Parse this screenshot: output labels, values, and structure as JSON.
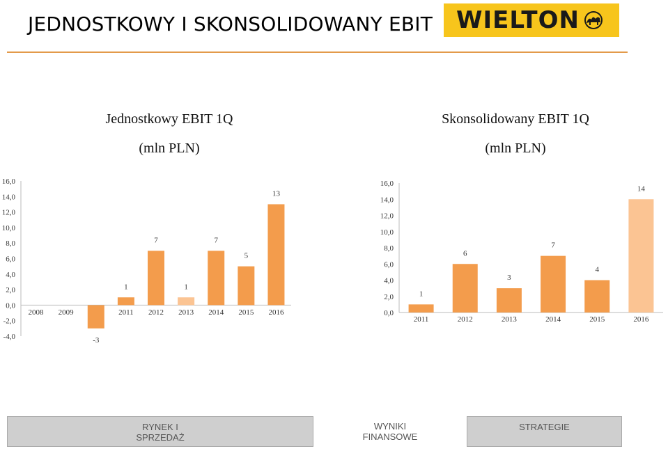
{
  "header": {
    "title": "JEDNOSTKOWY I SKONSOLIDOWANY EBIT",
    "logo_text": "WIELTON",
    "logo_color": "#f7c51c"
  },
  "colors": {
    "bar": "#f39c4c",
    "bar_light": "#fbc493",
    "rule": "#e39a4a"
  },
  "chart_data": [
    {
      "type": "bar",
      "title": "Jednostkowy EBIT 1Q",
      "subtitle": "(mln PLN)",
      "categories": [
        "2008",
        "2009",
        "2010",
        "2011",
        "2012",
        "2013",
        "2014",
        "2015",
        "2016"
      ],
      "values": [
        null,
        null,
        -3,
        1,
        7,
        1,
        7,
        5,
        13
      ],
      "data_labels": [
        "",
        "",
        "-3",
        "1",
        "7",
        "1",
        "7",
        "5",
        "13"
      ],
      "highlight_index": 5,
      "yticks": [
        "-4,0",
        "-2,0",
        "0,0",
        "2,0",
        "4,0",
        "6,0",
        "8,0",
        "10,0",
        "12,0",
        "14,0",
        "16,0"
      ],
      "ylim": [
        -4,
        16
      ],
      "grid": false
    },
    {
      "type": "bar",
      "title": "Skonsolidowany EBIT 1Q",
      "subtitle": "(mln PLN)",
      "categories": [
        "2011",
        "2012",
        "2013",
        "2014",
        "2015",
        "2016"
      ],
      "values": [
        1,
        6,
        3,
        7,
        4,
        14
      ],
      "data_labels": [
        "1",
        "6",
        "3",
        "7",
        "4",
        "14"
      ],
      "highlight_index": 5,
      "yticks": [
        "0,0",
        "2,0",
        "4,0",
        "6,0",
        "8,0",
        "10,0",
        "12,0",
        "14,0",
        "16,0"
      ],
      "ylim": [
        0,
        16
      ],
      "grid": false
    }
  ],
  "nav": {
    "items": [
      {
        "line1": "RYNEK I",
        "line2": "SPRZEDAŻ"
      },
      {
        "line1": "WYNIKI",
        "line2": "FINANSOWE"
      },
      {
        "line1": "STRATEGIE",
        "line2": ""
      }
    ]
  }
}
